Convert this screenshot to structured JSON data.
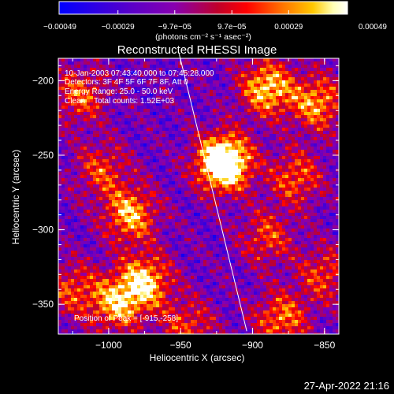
{
  "chart_data": {
    "type": "heatmap",
    "title": "Reconstructed RHESSI Image",
    "xlabel": "Heliocentric X (arcsec)",
    "ylabel": "Heliocentric Y (arcsec)",
    "xlim": [
      -1035,
      -840
    ],
    "ylim": [
      -370,
      -185
    ],
    "xticks": [
      -1000,
      -950,
      -900,
      -850
    ],
    "xtick_labels": [
      "−1000",
      "−950",
      "−900",
      "−850"
    ],
    "yticks": [
      -200,
      -250,
      -300,
      -350
    ],
    "ytick_labels": [
      "−200",
      "−250",
      "−300",
      "−350"
    ],
    "colorbar": {
      "range": [
        -0.00049,
        0.00049
      ],
      "ticks": [
        -0.00049,
        -0.00029,
        -9.7e-05,
        9.7e-05,
        0.00029,
        0.00049
      ],
      "tick_labels": [
        "−0.00049",
        "−0.00029",
        "−9.7e−05",
        "9.7e−05",
        "0.00029",
        "0.00049"
      ],
      "units_label": "(photons cm⁻² s⁻¹ asec⁻²)",
      "colormap": [
        "#0000ff",
        "#5a00c8",
        "#8800b0",
        "#c0002a",
        "#ff0000",
        "#ff7800",
        "#ffc800",
        "#ffffb4",
        "#ffffff"
      ]
    },
    "annotations": [
      "10-Jan-2003 07:43:40.000 to 07:45:28.000",
      "Detectors: 3F 4F 5F 6F 7F 8F, Att 0",
      "Energy Range: 25.0 - 50.0 keV",
      "Clean    Total counts: 1.52E+03"
    ],
    "peak_label": "Position of Peak = [-915,-258]",
    "limb_line": [
      [
        -951,
        -182
      ],
      [
        -904,
        -368
      ]
    ],
    "bright_sources": [
      {
        "x": -920,
        "y": -255,
        "peak": 1.0
      },
      {
        "x": -985,
        "y": -290,
        "peak": 0.55
      },
      {
        "x": -975,
        "y": -335,
        "peak": 0.6
      },
      {
        "x": -995,
        "y": -350,
        "peak": 0.5
      },
      {
        "x": -1005,
        "y": -260,
        "peak": 0.35
      },
      {
        "x": -890,
        "y": -205,
        "peak": 0.6
      },
      {
        "x": -855,
        "y": -215,
        "peak": 0.5
      },
      {
        "x": -870,
        "y": -265,
        "peak": 0.4
      },
      {
        "x": -890,
        "y": -305,
        "peak": 0.35
      },
      {
        "x": -850,
        "y": -330,
        "peak": 0.35
      },
      {
        "x": -880,
        "y": -360,
        "peak": 0.45
      },
      {
        "x": -1020,
        "y": -210,
        "peak": 0.4
      },
      {
        "x": -1025,
        "y": -340,
        "peak": 0.35
      },
      {
        "x": -945,
        "y": -365,
        "peak": 0.35
      }
    ]
  },
  "footer": {
    "timestamp": "27-Apr-2022 21:16"
  }
}
